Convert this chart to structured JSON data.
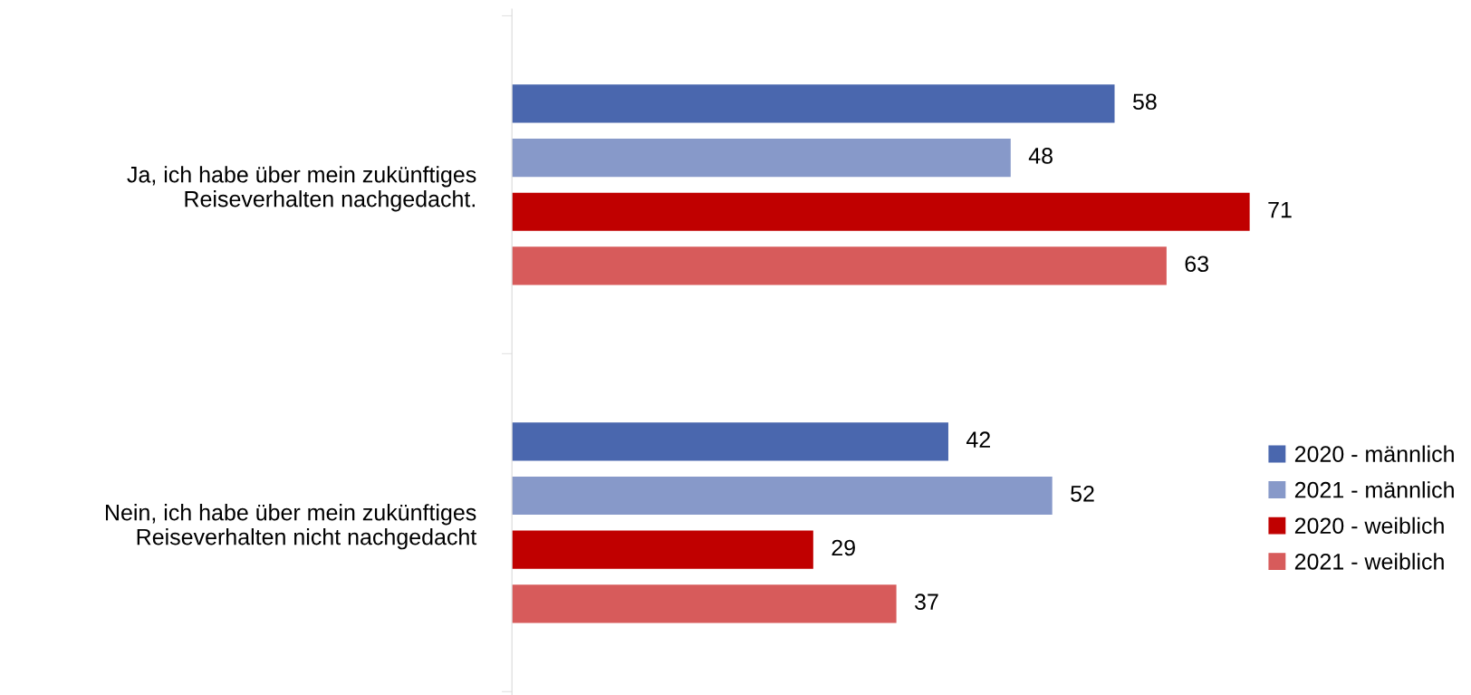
{
  "chart_data": {
    "type": "bar",
    "orientation": "horizontal",
    "categories": [
      "Ja, ich habe über mein zukünftiges\nReiseverhalten nachgedacht.",
      "Nein, ich habe über mein zukünftiges\nReiseverhalten nicht nachgedacht"
    ],
    "series": [
      {
        "name": "2020 - männlich",
        "color": "#4a67ae",
        "values": [
          58,
          42
        ]
      },
      {
        "name": "2021 - männlich",
        "color": "#8799c9",
        "values": [
          48,
          52
        ]
      },
      {
        "name": "2020 - weiblich",
        "color": "#c00000",
        "values": [
          71,
          29
        ]
      },
      {
        "name": "2021 - weiblich",
        "color": "#d75b5b",
        "values": [
          63,
          37
        ]
      }
    ],
    "data_labels": true,
    "legend": "right",
    "grid": false
  }
}
